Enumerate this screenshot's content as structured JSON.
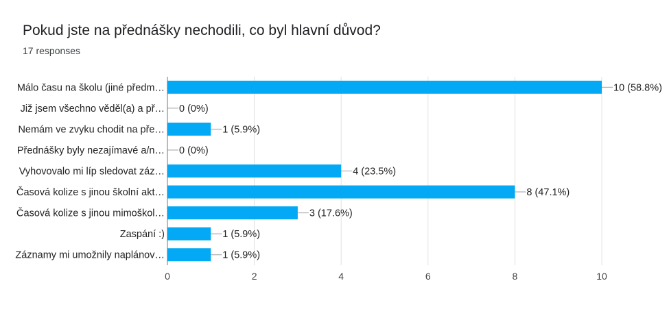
{
  "question": {
    "title": "Pokud jste na přednášky nechodili, co byl hlavní důvod?",
    "responses": "17 responses"
  },
  "colors": {
    "bar": "#03a9f4",
    "grid": "#e0e0e0",
    "axis": "#757575",
    "leader": "#9e9e9e"
  },
  "chart_data": {
    "type": "bar",
    "orientation": "horizontal",
    "categories": [
      "Málo času na školu (jiné předm…",
      "Již jsem všechno věděl(a) a př…",
      "Nemám ve zvyku chodit na pře…",
      "Přednášky byly nezajímavé a/n…",
      "Vyhovovalo mi líp sledovat záz…",
      "Časová kolize s jinou školní akt…",
      "Časová kolize s jinou mimoškol…",
      "Zaspání :)",
      "Záznamy mi umožnily naplánov…"
    ],
    "values": [
      10,
      0,
      1,
      0,
      4,
      8,
      3,
      1,
      1
    ],
    "value_labels": [
      "10 (58.8%)",
      "0 (0%)",
      "1 (5.9%)",
      "0 (0%)",
      "4 (23.5%)",
      "8 (47.1%)",
      "3 (17.6%)",
      "1 (5.9%)",
      "1 (5.9%)"
    ],
    "xticks": [
      0,
      2,
      4,
      6,
      8,
      10
    ],
    "xlim": [
      0,
      10
    ],
    "grid": true,
    "legend": "none"
  }
}
